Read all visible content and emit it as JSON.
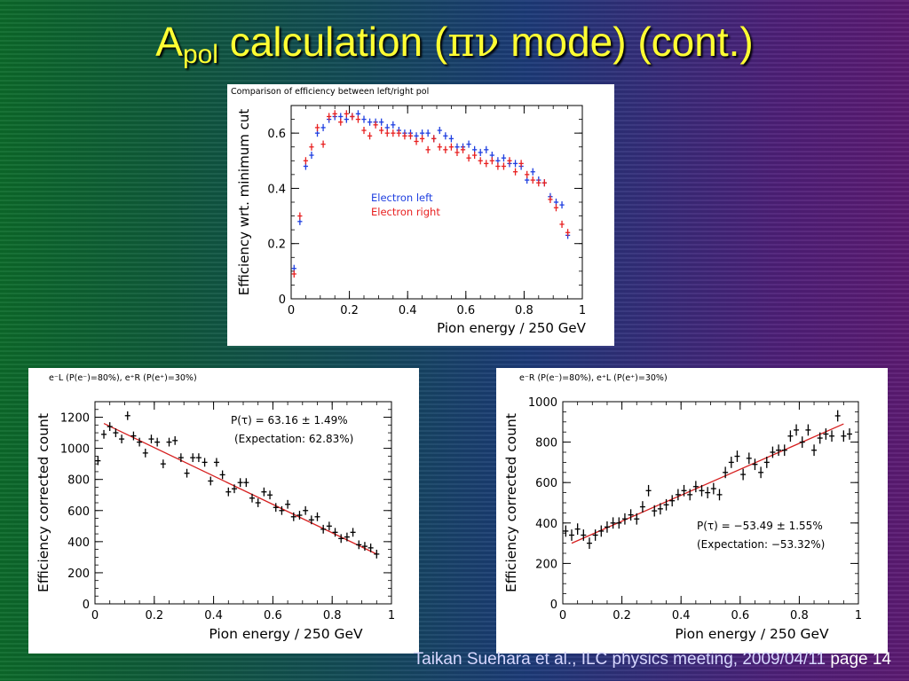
{
  "slide": {
    "title_main": "A",
    "title_sub": "pol",
    "title_rest_1": " calculation (",
    "title_greek": "πν",
    "title_rest_2": " mode) (cont.)",
    "footer_citation": "Taikan Suehara et al., ILC physics meeting, 2009/04/11",
    "footer_page": "page 14"
  },
  "chart_data": [
    {
      "type": "scatter",
      "title": "Comparison of efficiency between left/right pol",
      "xlabel": "Pion energy / 250 GeV",
      "ylabel": "Efficiency wrt. minimum cut",
      "xlim": [
        0,
        1
      ],
      "ylim": [
        0,
        0.7
      ],
      "xticks": [
        "0",
        "0.2",
        "0.4",
        "0.6",
        "0.8",
        "1"
      ],
      "yticks": [
        "0",
        "0.2",
        "0.4",
        "0.6"
      ],
      "legend_placement": "center",
      "series": [
        {
          "name": "Electron left",
          "color": "#1f3fe0",
          "points": [
            [
              0.01,
              0.11
            ],
            [
              0.03,
              0.28
            ],
            [
              0.05,
              0.48
            ],
            [
              0.07,
              0.52
            ],
            [
              0.09,
              0.6
            ],
            [
              0.11,
              0.62
            ],
            [
              0.13,
              0.65
            ],
            [
              0.15,
              0.66
            ],
            [
              0.17,
              0.66
            ],
            [
              0.19,
              0.65
            ],
            [
              0.21,
              0.66
            ],
            [
              0.23,
              0.67
            ],
            [
              0.25,
              0.65
            ],
            [
              0.27,
              0.64
            ],
            [
              0.29,
              0.64
            ],
            [
              0.31,
              0.64
            ],
            [
              0.33,
              0.62
            ],
            [
              0.35,
              0.63
            ],
            [
              0.37,
              0.61
            ],
            [
              0.39,
              0.6
            ],
            [
              0.41,
              0.6
            ],
            [
              0.43,
              0.59
            ],
            [
              0.45,
              0.6
            ],
            [
              0.47,
              0.6
            ],
            [
              0.49,
              0.58
            ],
            [
              0.51,
              0.61
            ],
            [
              0.53,
              0.59
            ],
            [
              0.55,
              0.58
            ],
            [
              0.57,
              0.55
            ],
            [
              0.59,
              0.55
            ],
            [
              0.61,
              0.56
            ],
            [
              0.63,
              0.54
            ],
            [
              0.65,
              0.53
            ],
            [
              0.67,
              0.54
            ],
            [
              0.69,
              0.52
            ],
            [
              0.71,
              0.5
            ],
            [
              0.73,
              0.51
            ],
            [
              0.75,
              0.49
            ],
            [
              0.77,
              0.49
            ],
            [
              0.79,
              0.48
            ],
            [
              0.81,
              0.43
            ],
            [
              0.83,
              0.46
            ],
            [
              0.85,
              0.43
            ],
            [
              0.87,
              0.42
            ],
            [
              0.89,
              0.37
            ],
            [
              0.91,
              0.35
            ],
            [
              0.93,
              0.34
            ],
            [
              0.95,
              0.23
            ]
          ]
        },
        {
          "name": "Electron right",
          "color": "#e82020",
          "points": [
            [
              0.01,
              0.09
            ],
            [
              0.03,
              0.3
            ],
            [
              0.05,
              0.5
            ],
            [
              0.07,
              0.55
            ],
            [
              0.09,
              0.62
            ],
            [
              0.11,
              0.56
            ],
            [
              0.13,
              0.66
            ],
            [
              0.15,
              0.67
            ],
            [
              0.17,
              0.64
            ],
            [
              0.19,
              0.67
            ],
            [
              0.21,
              0.66
            ],
            [
              0.23,
              0.65
            ],
            [
              0.25,
              0.61
            ],
            [
              0.27,
              0.59
            ],
            [
              0.29,
              0.63
            ],
            [
              0.31,
              0.61
            ],
            [
              0.33,
              0.6
            ],
            [
              0.35,
              0.6
            ],
            [
              0.37,
              0.6
            ],
            [
              0.39,
              0.59
            ],
            [
              0.41,
              0.59
            ],
            [
              0.43,
              0.57
            ],
            [
              0.45,
              0.58
            ],
            [
              0.47,
              0.54
            ],
            [
              0.49,
              0.58
            ],
            [
              0.51,
              0.55
            ],
            [
              0.53,
              0.54
            ],
            [
              0.55,
              0.55
            ],
            [
              0.57,
              0.53
            ],
            [
              0.59,
              0.54
            ],
            [
              0.61,
              0.51
            ],
            [
              0.63,
              0.52
            ],
            [
              0.65,
              0.5
            ],
            [
              0.67,
              0.49
            ],
            [
              0.69,
              0.5
            ],
            [
              0.71,
              0.48
            ],
            [
              0.73,
              0.48
            ],
            [
              0.75,
              0.5
            ],
            [
              0.77,
              0.46
            ],
            [
              0.79,
              0.49
            ],
            [
              0.81,
              0.45
            ],
            [
              0.83,
              0.43
            ],
            [
              0.85,
              0.42
            ],
            [
              0.87,
              0.42
            ],
            [
              0.89,
              0.36
            ],
            [
              0.91,
              0.33
            ],
            [
              0.93,
              0.27
            ],
            [
              0.95,
              0.24
            ]
          ]
        }
      ]
    },
    {
      "type": "scatter",
      "title": "e⁻L (P(e⁻)=80%), e⁺R (P(e⁺)=30%)",
      "xlabel": "Pion energy / 250 GeV",
      "ylabel": "Efficiency corrected count",
      "xlim": [
        0,
        1
      ],
      "ylim": [
        0,
        1300
      ],
      "xticks": [
        "0",
        "0.2",
        "0.4",
        "0.6",
        "0.8",
        "1"
      ],
      "yticks": [
        "0",
        "200",
        "400",
        "600",
        "800",
        "1000",
        "1200"
      ],
      "annotation_line1": "P(τ) = 63.16 ± 1.49%",
      "annotation_line2": "(Expectation: 62.83%)",
      "fit_line": {
        "color": "#d62020",
        "x": [
          0.03,
          0.95
        ],
        "y": [
          1160,
          320
        ]
      },
      "series": [
        {
          "color": "#000000",
          "points": [
            [
              0.01,
              920
            ],
            [
              0.03,
              1090
            ],
            [
              0.05,
              1140
            ],
            [
              0.07,
              1100
            ],
            [
              0.09,
              1060
            ],
            [
              0.11,
              1210
            ],
            [
              0.13,
              1080
            ],
            [
              0.15,
              1040
            ],
            [
              0.17,
              970
            ],
            [
              0.19,
              1060
            ],
            [
              0.21,
              1040
            ],
            [
              0.23,
              900
            ],
            [
              0.25,
              1040
            ],
            [
              0.27,
              1050
            ],
            [
              0.29,
              940
            ],
            [
              0.31,
              840
            ],
            [
              0.33,
              940
            ],
            [
              0.35,
              940
            ],
            [
              0.37,
              910
            ],
            [
              0.39,
              790
            ],
            [
              0.41,
              910
            ],
            [
              0.43,
              830
            ],
            [
              0.45,
              720
            ],
            [
              0.47,
              740
            ],
            [
              0.49,
              780
            ],
            [
              0.51,
              780
            ],
            [
              0.53,
              680
            ],
            [
              0.55,
              650
            ],
            [
              0.57,
              720
            ],
            [
              0.59,
              700
            ],
            [
              0.61,
              620
            ],
            [
              0.63,
              600
            ],
            [
              0.65,
              640
            ],
            [
              0.67,
              560
            ],
            [
              0.69,
              570
            ],
            [
              0.71,
              600
            ],
            [
              0.73,
              540
            ],
            [
              0.75,
              560
            ],
            [
              0.77,
              480
            ],
            [
              0.79,
              500
            ],
            [
              0.81,
              460
            ],
            [
              0.83,
              420
            ],
            [
              0.85,
              430
            ],
            [
              0.87,
              460
            ],
            [
              0.89,
              380
            ],
            [
              0.91,
              370
            ],
            [
              0.93,
              360
            ],
            [
              0.95,
              320
            ]
          ]
        }
      ]
    },
    {
      "type": "scatter",
      "title": "e⁻R (P(e⁻)=80%), e⁺L (P(e⁺)=30%)",
      "xlabel": "Pion energy / 250 GeV",
      "ylabel": "Efficiency corrected count",
      "xlim": [
        0,
        1
      ],
      "ylim": [
        0,
        1000
      ],
      "xticks": [
        "0",
        "0.2",
        "0.4",
        "0.6",
        "0.8",
        "1"
      ],
      "yticks": [
        "0",
        "200",
        "400",
        "600",
        "800",
        "1000"
      ],
      "annotation_line1": "P(τ) = −53.49 ± 1.55%",
      "annotation_line2": "(Expectation: −53.32%)",
      "fit_line": {
        "color": "#d62020",
        "x": [
          0.03,
          0.95
        ],
        "y": [
          300,
          890
        ]
      },
      "series": [
        {
          "color": "#000000",
          "points": [
            [
              0.01,
              360
            ],
            [
              0.03,
              340
            ],
            [
              0.05,
              370
            ],
            [
              0.07,
              340
            ],
            [
              0.09,
              300
            ],
            [
              0.11,
              340
            ],
            [
              0.13,
              360
            ],
            [
              0.15,
              380
            ],
            [
              0.17,
              400
            ],
            [
              0.19,
              400
            ],
            [
              0.21,
              420
            ],
            [
              0.23,
              440
            ],
            [
              0.25,
              420
            ],
            [
              0.27,
              480
            ],
            [
              0.29,
              560
            ],
            [
              0.31,
              460
            ],
            [
              0.33,
              470
            ],
            [
              0.35,
              490
            ],
            [
              0.37,
              510
            ],
            [
              0.39,
              540
            ],
            [
              0.41,
              560
            ],
            [
              0.43,
              540
            ],
            [
              0.45,
              580
            ],
            [
              0.47,
              560
            ],
            [
              0.49,
              550
            ],
            [
              0.51,
              570
            ],
            [
              0.53,
              540
            ],
            [
              0.55,
              650
            ],
            [
              0.57,
              700
            ],
            [
              0.59,
              730
            ],
            [
              0.61,
              640
            ],
            [
              0.63,
              720
            ],
            [
              0.65,
              690
            ],
            [
              0.67,
              650
            ],
            [
              0.69,
              700
            ],
            [
              0.71,
              750
            ],
            [
              0.73,
              760
            ],
            [
              0.75,
              760
            ],
            [
              0.77,
              830
            ],
            [
              0.79,
              860
            ],
            [
              0.81,
              800
            ],
            [
              0.83,
              860
            ],
            [
              0.85,
              760
            ],
            [
              0.87,
              820
            ],
            [
              0.89,
              840
            ],
            [
              0.91,
              830
            ],
            [
              0.93,
              930
            ],
            [
              0.95,
              830
            ],
            [
              0.97,
              840
            ]
          ]
        }
      ]
    }
  ]
}
